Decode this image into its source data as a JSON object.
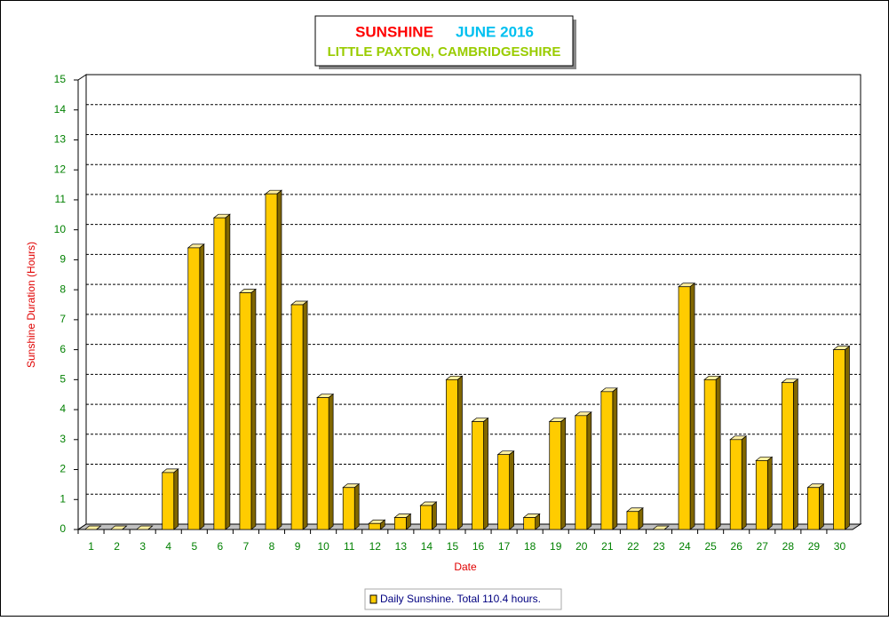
{
  "chart_data": {
    "type": "bar3d",
    "title": "SUNSHINE",
    "title_period": "JUNE 2016",
    "subtitle": "LITTLE PAXTON, CAMBRIDGESHIRE",
    "x_label": "Date",
    "y_label": "Sunshine Duration (Hours)",
    "categories": [
      "1",
      "2",
      "3",
      "4",
      "5",
      "6",
      "7",
      "8",
      "9",
      "10",
      "11",
      "12",
      "13",
      "14",
      "15",
      "16",
      "17",
      "18",
      "19",
      "20",
      "21",
      "22",
      "23",
      "24",
      "25",
      "26",
      "27",
      "28",
      "29",
      "30"
    ],
    "series": [
      {
        "name": "Daily Sunshine. Total 110.4 hours.",
        "color": "#ffcc00",
        "values": [
          0,
          0,
          0,
          1.9,
          9.4,
          10.4,
          7.9,
          11.2,
          7.5,
          4.4,
          1.4,
          0.2,
          0.4,
          0.8,
          5.0,
          3.6,
          2.5,
          0.4,
          3.6,
          3.8,
          4.6,
          0.6,
          0,
          8.1,
          5.0,
          3.0,
          2.3,
          4.9,
          1.4,
          6.0
        ]
      }
    ],
    "ylim": [
      0,
      15
    ],
    "yticks": [
      0,
      1,
      2,
      3,
      4,
      5,
      6,
      7,
      8,
      9,
      10,
      11,
      12,
      13,
      14,
      15
    ],
    "grid": true
  }
}
